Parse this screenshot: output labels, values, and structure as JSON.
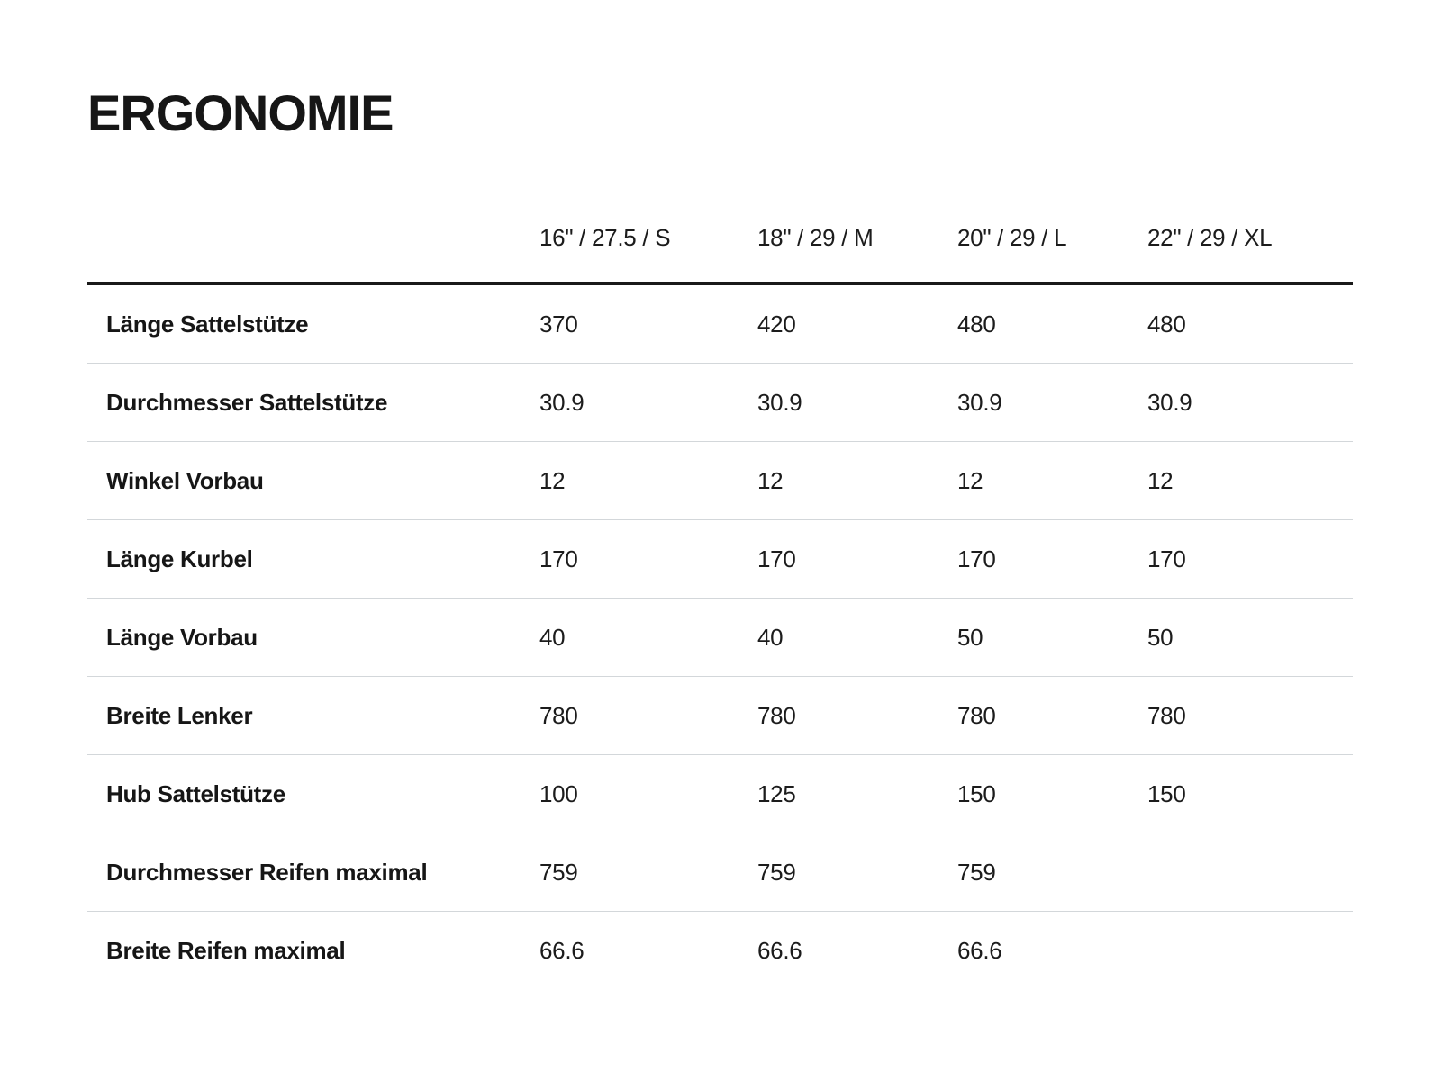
{
  "page": {
    "title": "ERGONOMIE"
  },
  "table": {
    "columns": [
      "16\" / 27.5 / S",
      "18\" / 29 / M",
      "20\" / 29 / L",
      "22\" / 29 / XL"
    ],
    "rows": [
      {
        "label": "Länge Sattelstütze",
        "values": [
          "370",
          "420",
          "480",
          "480"
        ]
      },
      {
        "label": "Durchmesser Sattelstütze",
        "values": [
          "30.9",
          "30.9",
          "30.9",
          "30.9"
        ]
      },
      {
        "label": "Winkel Vorbau",
        "values": [
          "12",
          "12",
          "12",
          "12"
        ]
      },
      {
        "label": "Länge Kurbel",
        "values": [
          "170",
          "170",
          "170",
          "170"
        ]
      },
      {
        "label": "Länge Vorbau",
        "values": [
          "40",
          "40",
          "50",
          "50"
        ]
      },
      {
        "label": "Breite Lenker",
        "values": [
          "780",
          "780",
          "780",
          "780"
        ]
      },
      {
        "label": "Hub Sattelstütze",
        "values": [
          "100",
          "125",
          "150",
          "150"
        ]
      },
      {
        "label": "Durchmesser Reifen maximal",
        "values": [
          "759",
          "759",
          "759",
          ""
        ]
      },
      {
        "label": "Breite Reifen maximal",
        "values": [
          "66.6",
          "66.6",
          "66.6",
          ""
        ]
      }
    ]
  },
  "colors": {
    "background": "#ffffff",
    "text": "#1c1c1c",
    "header_rule": "#191919",
    "row_divider": "#d3d7da"
  }
}
